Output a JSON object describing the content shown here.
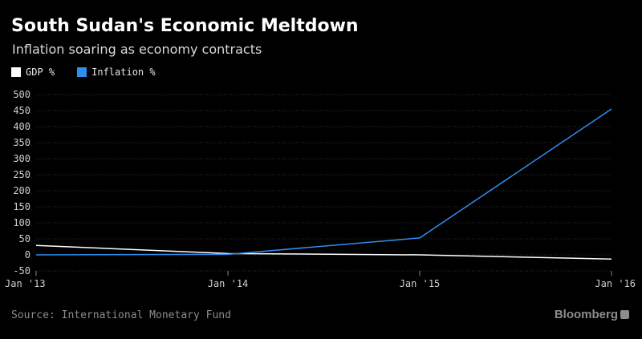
{
  "chart_data": {
    "type": "line",
    "title": "South Sudan's Economic Meltdown",
    "subtitle": "Inflation soaring as economy contracts",
    "x": [
      "Jan '13",
      "Jan '14",
      "Jan '15",
      "Jan '16"
    ],
    "x_ticks": [
      "Jan '13",
      "Jan '14",
      "Jan '15",
      "Jan '16"
    ],
    "y_ticks": [
      500,
      450,
      400,
      350,
      300,
      250,
      200,
      150,
      100,
      50,
      0,
      -50
    ],
    "ylim": [
      -50,
      500
    ],
    "grid": true,
    "legend_position": "top-left",
    "series": [
      {
        "name": "GDP %",
        "values": [
          29.3,
          4.2,
          -0.1,
          -13.1
        ],
        "color": "#ffffff"
      },
      {
        "name": "Inflation %",
        "values": [
          0,
          1.7,
          52.8,
          455.0
        ],
        "color": "#2e8ff0"
      }
    ]
  },
  "source": "Source: International Monetary Fund",
  "brand": "Bloomberg"
}
